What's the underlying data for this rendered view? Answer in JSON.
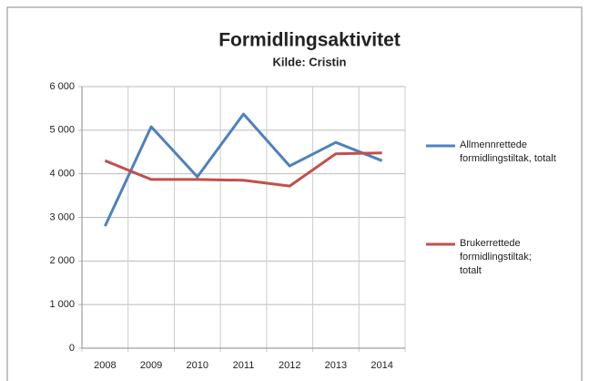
{
  "chart_data": {
    "type": "line",
    "title": "Formidlingsaktivitet",
    "subtitle": "Kilde: Cristin",
    "categories": [
      "2008",
      "2009",
      "2010",
      "2011",
      "2012",
      "2013",
      "2014"
    ],
    "series": [
      {
        "name": "Allmennrettede formidlingstiltak, totalt",
        "color": "#4f81bd",
        "values": [
          2800,
          5080,
          3930,
          5370,
          4180,
          4720,
          4300
        ]
      },
      {
        "name": "Brukerrettede formidlingstiltak; totalt",
        "color": "#c0504d",
        "values": [
          4300,
          3870,
          3870,
          3850,
          3720,
          4460,
          4480
        ]
      }
    ],
    "ylim": [
      0,
      6000
    ],
    "yticks": [
      0,
      {
        "value": 1000,
        "label": "1 000"
      },
      {
        "value": 2000,
        "label": "2 000"
      },
      {
        "value": 3000,
        "label": "3 000"
      },
      {
        "value": 4000,
        "label": "4 000"
      },
      {
        "value": 5000,
        "label": "5 000"
      },
      {
        "value": 6000,
        "label": "6 000"
      }
    ],
    "grid": true,
    "legend": "right"
  }
}
